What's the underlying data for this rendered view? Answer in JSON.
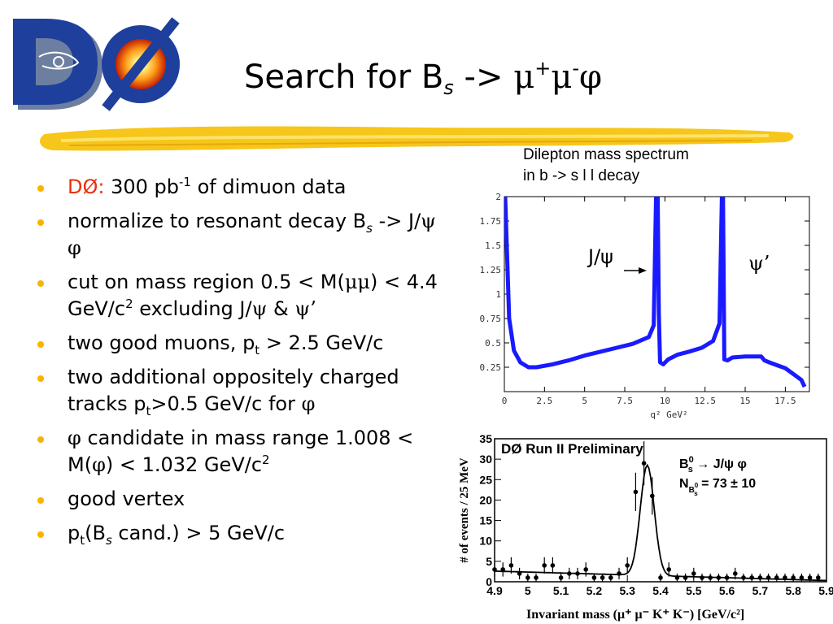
{
  "slide": {
    "title_main": "Search for B",
    "title_sub": "s",
    "title_arrow": " -> ",
    "title_mu1": "μ",
    "title_plus": "+",
    "title_mu2": "μ",
    "title_minus": "-",
    "title_phi": "φ"
  },
  "logo": {
    "text": "DØ"
  },
  "caption": {
    "line1": "Dilepton mass spectrum",
    "line2": "in b -> s l l decay"
  },
  "bullets": {
    "b1": {
      "label": "DØ:",
      "a": " 300 pb",
      "sup": "-1",
      "b": " of dimuon data"
    },
    "b2": {
      "a": "normalize to resonant decay B",
      "sub": "s",
      "b": " -> J/",
      "psi": "ψ",
      "sp": " ",
      "phi": "φ"
    },
    "b3": {
      "a": "cut on mass region 0.5 < M(",
      "mumu": "μμ",
      "b": ") < 4.4 GeV/c",
      "sup": "2",
      "c": " excluding J/",
      "psi": "ψ",
      "d": " & ",
      "psip": "ψ’"
    },
    "b4": {
      "a": "two good muons, p",
      "sub": "t",
      "b": " > 2.5 GeV/c"
    },
    "b5": {
      "a": "two additional oppositely charged tracks p",
      "sub": "t",
      "b": ">0.5 GeV/c for ",
      "phi": "φ"
    },
    "b6": {
      "phi": "φ",
      "a": " candidate in mass range 1.008 < M(",
      "phi2": "φ",
      "b": ") < 1.032 GeV/c",
      "sup": "2"
    },
    "b7": {
      "a": "good vertex"
    },
    "b8": {
      "a": "p",
      "sub": "t",
      "b": "(B",
      "sub2": "s",
      "c": " cand.) > 5 GeV/c"
    }
  },
  "chart_data": [
    {
      "type": "line",
      "xlabel": "q² GeV²",
      "ylabel": "",
      "xlim": [
        0,
        19
      ],
      "ylim": [
        0,
        2
      ],
      "xticks": [
        "0",
        "2.5",
        "5",
        "7.5",
        "10",
        "12.5",
        "15",
        "17.5"
      ],
      "yticks": [
        "0.25",
        "0.5",
        "0.75",
        "1",
        "1.25",
        "1.5",
        "1.75",
        "2"
      ],
      "annotations": [
        "J/ψ",
        "ψ’"
      ],
      "color": "#1a1aff",
      "x": [
        0.05,
        0.3,
        0.6,
        1.0,
        1.5,
        2.0,
        3.0,
        4.0,
        5.0,
        6.0,
        7.0,
        8.0,
        9.0,
        9.3,
        9.45,
        9.55,
        9.62,
        9.7,
        9.9,
        10.2,
        10.8,
        11.5,
        12.3,
        13.0,
        13.4,
        13.55,
        13.62,
        13.7,
        13.9,
        14.2,
        15.0,
        16.0,
        16.2,
        16.5,
        17.0,
        17.5,
        18.0,
        18.5,
        18.7
      ],
      "y": [
        2.0,
        0.75,
        0.42,
        0.3,
        0.25,
        0.25,
        0.28,
        0.32,
        0.37,
        0.41,
        0.45,
        0.49,
        0.56,
        0.68,
        2.0,
        2.0,
        0.8,
        0.3,
        0.28,
        0.33,
        0.38,
        0.41,
        0.45,
        0.52,
        0.7,
        2.0,
        2.0,
        0.33,
        0.32,
        0.35,
        0.36,
        0.36,
        0.32,
        0.3,
        0.27,
        0.24,
        0.18,
        0.12,
        0.05
      ]
    },
    {
      "type": "scatter",
      "title": "DØ Run II Preliminary",
      "legend_line1": "→ J/ψ φ",
      "legend_line2": "= 73 ± 10",
      "legend_b": "B",
      "legend_b_sup": "0",
      "legend_b_sub": "s",
      "legend_n": "N",
      "xlabel": "Invariant mass (μ⁺ μ⁻ K⁺ K⁻)  [GeV/c²]",
      "ylabel": "# of events / 25 MeV",
      "xlim": [
        4.9,
        5.9
      ],
      "ylim": [
        0,
        35
      ],
      "xticks": [
        "4.9",
        "5",
        "5.1",
        "5.2",
        "5.3",
        "5.4",
        "5.5",
        "5.6",
        "5.7",
        "5.8",
        "5.9"
      ],
      "yticks": [
        "0",
        "5",
        "10",
        "15",
        "20",
        "25",
        "30",
        "35"
      ],
      "x": [
        4.9,
        4.925,
        4.95,
        4.975,
        5.0,
        5.025,
        5.05,
        5.075,
        5.1,
        5.125,
        5.15,
        5.175,
        5.2,
        5.225,
        5.25,
        5.275,
        5.3,
        5.325,
        5.35,
        5.375,
        5.4,
        5.425,
        5.45,
        5.475,
        5.5,
        5.525,
        5.55,
        5.575,
        5.6,
        5.625,
        5.65,
        5.675,
        5.7,
        5.725,
        5.75,
        5.775,
        5.8,
        5.825,
        5.85,
        5.875
      ],
      "y": [
        3,
        3,
        4,
        2,
        1,
        1,
        4,
        4,
        1,
        2,
        2,
        3,
        1,
        1,
        1,
        2,
        4,
        22,
        29,
        21,
        1,
        3,
        1,
        1,
        2,
        1,
        1,
        1,
        1,
        2,
        1,
        1,
        1,
        1,
        1,
        1,
        1,
        1,
        1,
        1
      ],
      "fit": "gaussian + linear background"
    }
  ]
}
